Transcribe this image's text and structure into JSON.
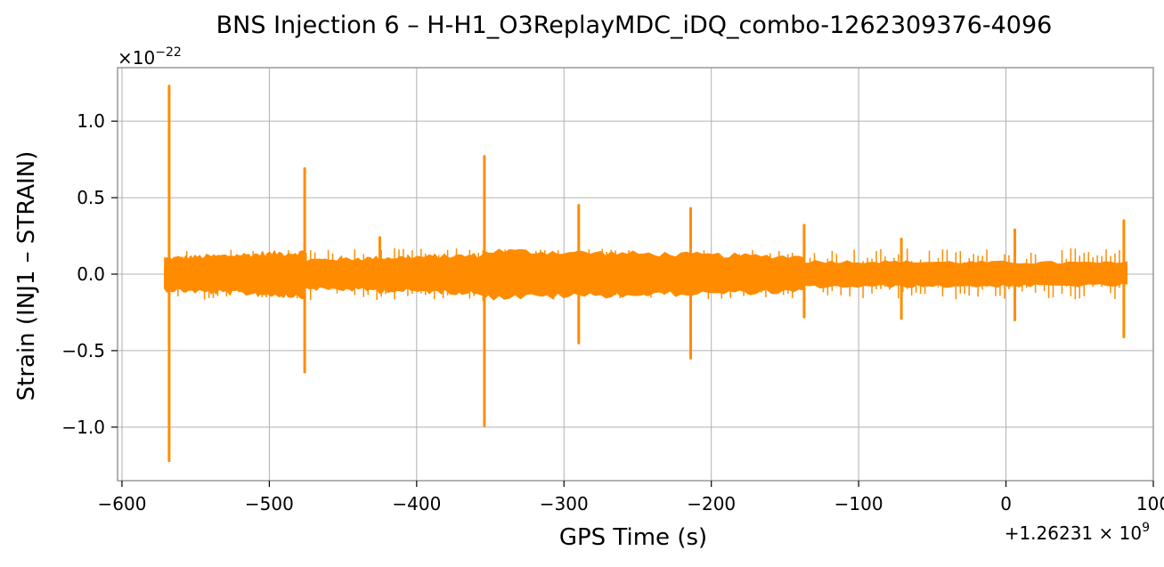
{
  "chart_data": {
    "type": "line",
    "title": "BNS Injection 6 – H-H1_O3ReplayMDC_iDQ_combo-1262309376-4096",
    "xlabel": "GPS Time (s)",
    "ylabel": "Strain (INJ1 – STRAIN)",
    "x_offset_label": "+1.26231 × 10",
    "x_offset_exponent": "9",
    "y_scale_label": "×10",
    "y_scale_exponent": "−22",
    "xlim": [
      -603,
      100
    ],
    "ylim": [
      -1.35,
      1.35
    ],
    "xticks": [
      -600,
      -500,
      -400,
      -300,
      -200,
      -100,
      0,
      100
    ],
    "xtick_labels": [
      "−600",
      "−500",
      "−400",
      "−300",
      "−200",
      "−100",
      "0",
      "100"
    ],
    "yticks": [
      -1.0,
      -0.5,
      0.0,
      0.5,
      1.0
    ],
    "ytick_labels": [
      "−1.0",
      "−0.5",
      "0.0",
      "0.5",
      "1.0"
    ],
    "grid": true,
    "color": "#ff8c00",
    "x_range": [
      -571,
      82
    ],
    "background_band": {
      "segments": [
        {
          "x": [
            -571,
            -476
          ],
          "upper": [
            0.1,
            0.14
          ],
          "lower": [
            -0.1,
            -0.14
          ]
        },
        {
          "x": [
            -476,
            -355
          ],
          "upper": [
            0.09,
            0.12
          ],
          "lower": [
            -0.09,
            -0.12
          ]
        },
        {
          "x": [
            -355,
            -137
          ],
          "upper": [
            0.15,
            0.11
          ],
          "lower": [
            -0.15,
            -0.11
          ]
        },
        {
          "x": [
            -137,
            82
          ],
          "upper": [
            0.08,
            0.07
          ],
          "lower": [
            -0.08,
            -0.07
          ]
        }
      ]
    },
    "transients": [
      {
        "x": -568,
        "max": 1.23,
        "min": -1.22
      },
      {
        "x": -476,
        "max": 0.69,
        "min": -0.64
      },
      {
        "x": -425,
        "max": 0.24,
        "min": -0.12
      },
      {
        "x": -354,
        "max": 0.77,
        "min": -0.99
      },
      {
        "x": -290,
        "max": 0.45,
        "min": -0.45
      },
      {
        "x": -214,
        "max": 0.43,
        "min": -0.55
      },
      {
        "x": -137,
        "max": 0.32,
        "min": -0.28
      },
      {
        "x": -71,
        "max": 0.23,
        "min": -0.29
      },
      {
        "x": 6,
        "max": 0.29,
        "min": -0.3
      },
      {
        "x": 80,
        "max": 0.35,
        "min": -0.41
      }
    ]
  }
}
